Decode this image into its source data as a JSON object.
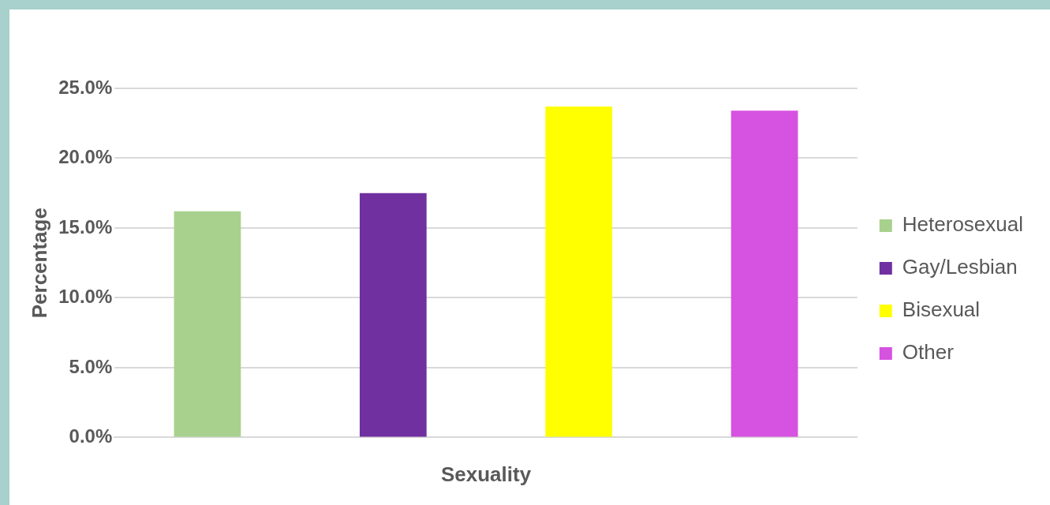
{
  "chart_data": {
    "type": "bar",
    "xlabel": "Sexuality",
    "ylabel": "Percentage",
    "categories": [
      null,
      null,
      null,
      null
    ],
    "series": [
      {
        "name": "Heterosexual",
        "color": "#a9d18e",
        "values": [
          16.2,
          null,
          null,
          null
        ]
      },
      {
        "name": "Gay/Lesbian",
        "color": "#7030a0",
        "values": [
          null,
          17.5,
          null,
          null
        ]
      },
      {
        "name": "Bisexual",
        "color": "#ffff00",
        "values": [
          null,
          null,
          23.7,
          null
        ]
      },
      {
        "name": "Other",
        "color": "#d652e0",
        "values": [
          null,
          null,
          null,
          23.4
        ]
      }
    ],
    "ylim": [
      0,
      25
    ],
    "yticks": [
      {
        "value": 0,
        "label": "0.0%"
      },
      {
        "value": 5,
        "label": "5.0%"
      },
      {
        "value": 10,
        "label": "10.0%"
      },
      {
        "value": 15,
        "label": "15.0%"
      },
      {
        "value": 20,
        "label": "20.0%"
      },
      {
        "value": 25,
        "label": "25.0%"
      }
    ],
    "grid": "y",
    "legend": "right"
  }
}
